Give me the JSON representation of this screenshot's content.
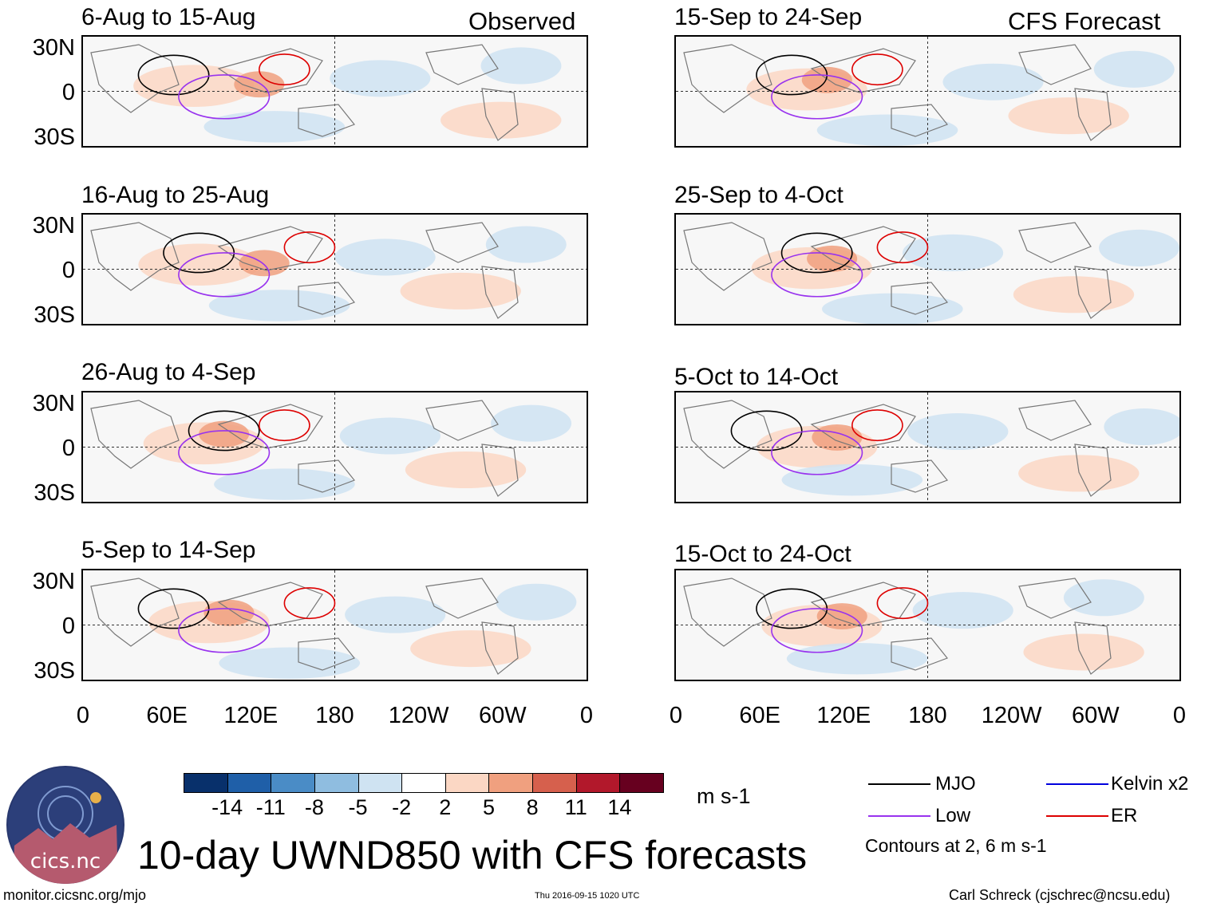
{
  "chart_data": {
    "type": "heatmap",
    "title": "10-day UWND850 with CFS forecasts",
    "variable": "UWND850",
    "units": "m s-1",
    "observed_label": "Observed",
    "forecast_label": "CFS Forecast",
    "x_ticks": [
      "0",
      "60E",
      "120E",
      "180",
      "120W",
      "60W",
      "0"
    ],
    "y_ticks": [
      "30N",
      "0",
      "30S"
    ],
    "panels": [
      {
        "period": "6-Aug to 15-Aug",
        "source": "Observed"
      },
      {
        "period": "16-Aug to 25-Aug",
        "source": "Observed"
      },
      {
        "period": "26-Aug to 4-Sep",
        "source": "Observed"
      },
      {
        "period": "5-Sep to 14-Sep",
        "source": "Observed"
      },
      {
        "period": "15-Sep to 24-Sep",
        "source": "CFS Forecast"
      },
      {
        "period": "25-Sep to 4-Oct",
        "source": "CFS Forecast"
      },
      {
        "period": "5-Oct to 14-Oct",
        "source": "CFS Forecast"
      },
      {
        "period": "15-Oct to 24-Oct",
        "source": "CFS Forecast"
      }
    ],
    "colorbar": {
      "ticks": [
        "-14",
        "-11",
        "-8",
        "-5",
        "-2",
        "2",
        "5",
        "8",
        "11",
        "14"
      ],
      "colors": [
        "#08306b",
        "#1f5fa8",
        "#4a8cc6",
        "#8fbde0",
        "#cfe3f2",
        "#ffffff",
        "#fbd7c4",
        "#f0a07f",
        "#d6604d",
        "#b2182b",
        "#67001f"
      ]
    },
    "legend": [
      {
        "label": "MJO",
        "color": "#000000"
      },
      {
        "label": "Kelvin x2",
        "color": "#0000dd"
      },
      {
        "label": "Low",
        "color": "#9933ee"
      },
      {
        "label": "ER",
        "color": "#dd0000"
      }
    ],
    "contours_note": "Contours at 2, 6 m s-1"
  },
  "logo_text": "cics.nc",
  "footer": {
    "url": "monitor.cicsnc.org/mjo",
    "timestamp": "Thu 2016-09-15 1020 UTC",
    "credit": "Carl Schreck (cjschrec@ncsu.edu)"
  }
}
